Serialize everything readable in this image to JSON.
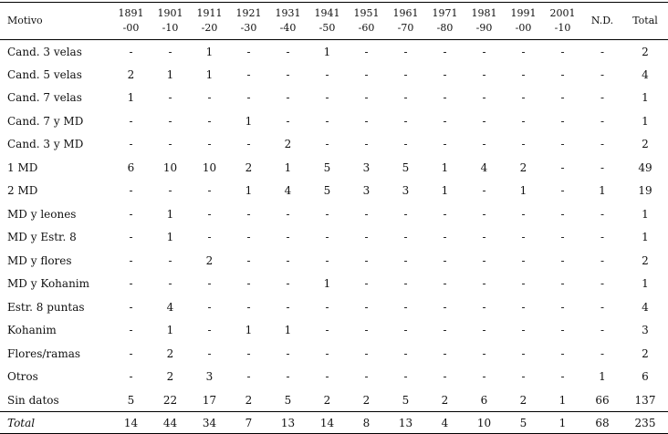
{
  "table": {
    "header": [
      [
        "Motivo"
      ],
      [
        "1891",
        "-00"
      ],
      [
        "1901",
        "-10"
      ],
      [
        "1911",
        "-20"
      ],
      [
        "1921",
        "-30"
      ],
      [
        "1931",
        "-40"
      ],
      [
        "1941",
        "-50"
      ],
      [
        "1951",
        "-60"
      ],
      [
        "1961",
        "-70"
      ],
      [
        "1971",
        "-80"
      ],
      [
        "1981",
        "-90"
      ],
      [
        "1991",
        "-00"
      ],
      [
        "2001",
        "-10"
      ],
      [
        "N.D."
      ],
      [
        "Total"
      ]
    ],
    "rows": [
      [
        "Cand. 3 velas",
        "-",
        "-",
        1,
        "-",
        "-",
        1,
        "-",
        "-",
        "-",
        "-",
        "-",
        "-",
        "-",
        2
      ],
      [
        "Cand. 5 velas",
        2,
        1,
        1,
        "-",
        "-",
        "-",
        "-",
        "-",
        "-",
        "-",
        "-",
        "-",
        "-",
        4
      ],
      [
        "Cand. 7 velas",
        1,
        "-",
        "-",
        "-",
        "-",
        "-",
        "-",
        "-",
        "-",
        "-",
        "-",
        "-",
        "-",
        1
      ],
      [
        "Cand. 7 y MD",
        "-",
        "-",
        "-",
        1,
        "-",
        "-",
        "-",
        "-",
        "-",
        "-",
        "-",
        "-",
        "-",
        1
      ],
      [
        "Cand. 3 y MD",
        "-",
        "-",
        "-",
        "-",
        2,
        "-",
        "-",
        "-",
        "-",
        "-",
        "-",
        "-",
        "-",
        2
      ],
      [
        "1 MD",
        6,
        10,
        10,
        2,
        1,
        5,
        3,
        5,
        1,
        4,
        2,
        "-",
        "-",
        49
      ],
      [
        "2 MD",
        "-",
        "-",
        "-",
        1,
        4,
        5,
        3,
        3,
        1,
        "-",
        1,
        "-",
        1,
        19
      ],
      [
        "MD y leones",
        "-",
        1,
        "-",
        "-",
        "-",
        "-",
        "-",
        "-",
        "-",
        "-",
        "-",
        "-",
        "-",
        1
      ],
      [
        "MD y Estr. 8",
        "-",
        1,
        "-",
        "-",
        "-",
        "-",
        "-",
        "-",
        "-",
        "-",
        "-",
        "-",
        "-",
        1
      ],
      [
        "MD y flores",
        "-",
        "-",
        2,
        "-",
        "-",
        "-",
        "-",
        "-",
        "-",
        "-",
        "-",
        "-",
        "-",
        2
      ],
      [
        "MD y Kohanim",
        "-",
        "-",
        "-",
        "-",
        "-",
        1,
        "-",
        "-",
        "-",
        "-",
        "-",
        "-",
        "-",
        1
      ],
      [
        "Estr. 8 puntas",
        "-",
        4,
        "-",
        "-",
        "-",
        "-",
        "-",
        "-",
        "-",
        "-",
        "-",
        "-",
        "-",
        4
      ],
      [
        "Kohanim",
        "-",
        1,
        "-",
        1,
        1,
        "-",
        "-",
        "-",
        "-",
        "-",
        "-",
        "-",
        "-",
        3
      ],
      [
        "Flores/ramas",
        "-",
        2,
        "-",
        "-",
        "-",
        "-",
        "-",
        "-",
        "-",
        "-",
        "-",
        "-",
        "-",
        2
      ],
      [
        "Otros",
        "-",
        2,
        3,
        "-",
        "-",
        "-",
        "-",
        "-",
        "-",
        "-",
        "-",
        "-",
        1,
        6
      ],
      [
        "Sin datos",
        5,
        22,
        17,
        2,
        5,
        2,
        2,
        5,
        2,
        6,
        2,
        1,
        66,
        137
      ]
    ],
    "total": [
      "Total",
      14,
      44,
      34,
      7,
      13,
      14,
      8,
      13,
      4,
      10,
      5,
      1,
      68,
      235
    ]
  }
}
